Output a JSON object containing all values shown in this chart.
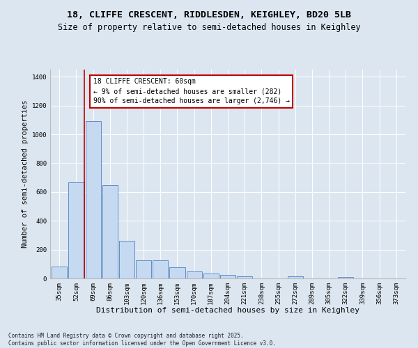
{
  "title1": "18, CLIFFE CRESCENT, RIDDLESDEN, KEIGHLEY, BD20 5LB",
  "title2": "Size of property relative to semi-detached houses in Keighley",
  "xlabel": "Distribution of semi-detached houses by size in Keighley",
  "ylabel": "Number of semi-detached properties",
  "categories": [
    "35sqm",
    "52sqm",
    "69sqm",
    "86sqm",
    "103sqm",
    "120sqm",
    "136sqm",
    "153sqm",
    "170sqm",
    "187sqm",
    "204sqm",
    "221sqm",
    "238sqm",
    "255sqm",
    "272sqm",
    "289sqm",
    "305sqm",
    "322sqm",
    "339sqm",
    "356sqm",
    "373sqm"
  ],
  "values": [
    83,
    665,
    1090,
    650,
    260,
    127,
    127,
    75,
    47,
    33,
    22,
    15,
    0,
    0,
    15,
    0,
    0,
    10,
    0,
    0,
    0
  ],
  "bar_color": "#c5d9f1",
  "bar_edge_color": "#4f81bd",
  "vline_color": "#c00000",
  "vline_x_index": 1,
  "annotation_text": "18 CLIFFE CRESCENT: 60sqm\n← 9% of semi-detached houses are smaller (282)\n90% of semi-detached houses are larger (2,746) →",
  "annotation_box_facecolor": "#ffffff",
  "annotation_box_edgecolor": "#c00000",
  "ylim": [
    0,
    1450
  ],
  "yticks": [
    0,
    200,
    400,
    600,
    800,
    1000,
    1200,
    1400
  ],
  "fig_bg_color": "#dce6f1",
  "plot_bg_color": "#dce6f1",
  "grid_color": "#ffffff",
  "footer": "Contains HM Land Registry data © Crown copyright and database right 2025.\nContains public sector information licensed under the Open Government Licence v3.0.",
  "title1_fontsize": 9.5,
  "title2_fontsize": 8.5,
  "xlabel_fontsize": 8,
  "ylabel_fontsize": 7.5,
  "tick_fontsize": 6.5,
  "annotation_fontsize": 7,
  "footer_fontsize": 5.5
}
